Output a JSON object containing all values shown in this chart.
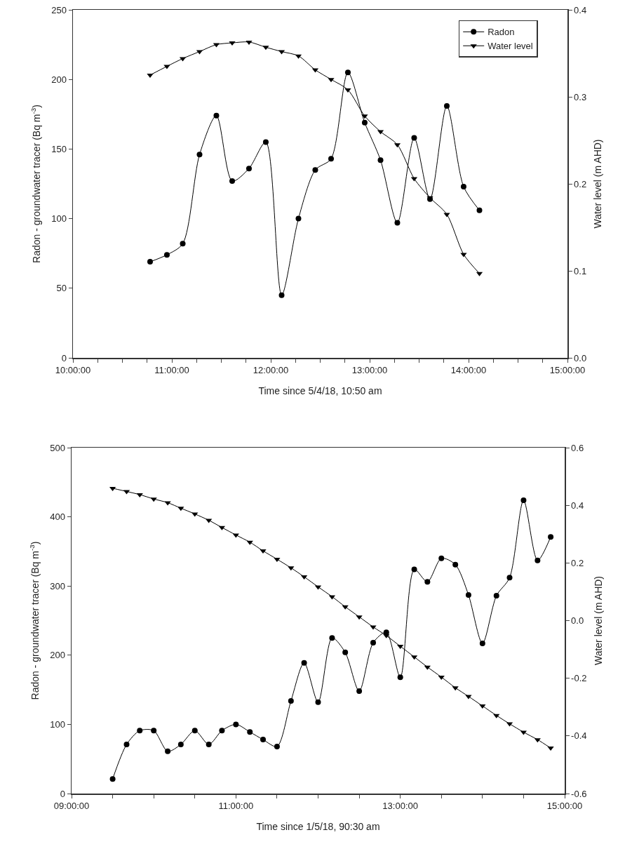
{
  "chart_data": [
    {
      "type": "line",
      "xlabel": "Time since 5/4/18, 10:50 am",
      "ylabel": "Radon - groundwater tracer (Bq m$^{-3}$)",
      "y2label": "Water level (m AHD)",
      "x": [
        10.78,
        10.95,
        11.11,
        11.28,
        11.45,
        11.61,
        11.78,
        11.95,
        12.11,
        12.28,
        12.45,
        12.61,
        12.78,
        12.95,
        13.11,
        13.28,
        13.45,
        13.61,
        13.78,
        13.95,
        14.11
      ],
      "series": [
        {
          "name": "Radon",
          "color": "#000000",
          "marker": "circle",
          "values": [
            69,
            74,
            82,
            146,
            174,
            127,
            136,
            155,
            45,
            100,
            135,
            143,
            205,
            169,
            142,
            97,
            158,
            114,
            181,
            123,
            106
          ]
        },
        {
          "name": "Water level",
          "color": "#000000",
          "marker": "triangle",
          "axis": "y2",
          "values": [
            0.325,
            0.335,
            0.344,
            0.352,
            0.36,
            0.362,
            0.363,
            0.357,
            0.352,
            0.347,
            0.331,
            0.32,
            0.308,
            0.278,
            0.26,
            0.245,
            0.206,
            0.184,
            0.165,
            0.119,
            0.097
          ]
        }
      ],
      "xlim": [
        10,
        15
      ],
      "xticks": [
        {
          "value": 10,
          "label": "10:00:00"
        },
        {
          "value": 10.25,
          "label": null
        },
        {
          "value": 10.5,
          "label": null
        },
        {
          "value": 10.75,
          "label": null
        },
        {
          "value": 11,
          "label": "11:00:00"
        },
        {
          "value": 11.25,
          "label": null
        },
        {
          "value": 11.5,
          "label": null
        },
        {
          "value": 11.75,
          "label": null
        },
        {
          "value": 12,
          "label": "12:00:00"
        },
        {
          "value": 12.25,
          "label": null
        },
        {
          "value": 12.5,
          "label": null
        },
        {
          "value": 12.75,
          "label": null
        },
        {
          "value": 13,
          "label": "13:00:00"
        },
        {
          "value": 13.25,
          "label": null
        },
        {
          "value": 13.5,
          "label": null
        },
        {
          "value": 13.75,
          "label": null
        },
        {
          "value": 14,
          "label": "14:00:00"
        },
        {
          "value": 14.25,
          "label": null
        },
        {
          "value": 14.5,
          "label": null
        },
        {
          "value": 14.75,
          "label": null
        },
        {
          "value": 15,
          "label": "15:00:00"
        }
      ],
      "ylim": [
        0,
        250
      ],
      "yticks": [
        0,
        50,
        100,
        150,
        200,
        250
      ],
      "y2lim": [
        0,
        0.4
      ],
      "y2ticks": [
        {
          "value": 0,
          "label": "0.0"
        },
        0.1,
        0.2,
        0.3,
        0.4
      ],
      "grid": false,
      "legend": "top right",
      "line_style": "solid"
    },
    {
      "type": "line",
      "xlabel": "Time since 1/5/18, 90:30 am",
      "ylabel": "Radon - groundwater tracer (Bq m$^{-3}$)",
      "y2label": "Water level (m AHD)",
      "x": [
        9.5,
        9.67,
        9.83,
        10,
        10.17,
        10.33,
        10.5,
        10.67,
        10.83,
        11,
        11.17,
        11.33,
        11.5,
        11.67,
        11.83,
        12,
        12.17,
        12.33,
        12.5,
        12.67,
        12.83,
        13,
        13.17,
        13.33,
        13.5,
        13.67,
        13.83,
        14,
        14.17,
        14.33,
        14.5,
        14.67,
        14.83
      ],
      "series": [
        {
          "color": "#000000",
          "marker": "circle",
          "values": [
            21,
            71,
            91,
            91,
            61,
            71,
            91,
            71,
            91,
            100,
            89,
            78,
            68,
            134,
            189,
            132,
            225,
            204,
            148,
            218,
            233,
            168,
            324,
            306,
            340,
            331,
            287,
            217,
            286,
            312,
            424,
            337,
            371
          ]
        },
        {
          "color": "#000000",
          "marker": "triangle",
          "axis": "y2",
          "values": [
            0.459,
            0.448,
            0.437,
            0.422,
            0.409,
            0.39,
            0.37,
            0.348,
            0.323,
            0.297,
            0.272,
            0.242,
            0.213,
            0.183,
            0.152,
            0.117,
            0.083,
            0.048,
            0.013,
            -0.022,
            -0.052,
            -0.089,
            -0.126,
            -0.161,
            -0.196,
            -0.233,
            -0.263,
            -0.296,
            -0.329,
            -0.358,
            -0.387,
            -0.413,
            -0.442
          ]
        }
      ],
      "xlim": [
        9,
        15
      ],
      "xticks": [
        {
          "value": 9,
          "label": "09:00:00"
        },
        {
          "value": 9.5,
          "label": null
        },
        {
          "value": 10,
          "label": null
        },
        {
          "value": 10.5,
          "label": null
        },
        {
          "value": 11,
          "label": "11:00:00"
        },
        {
          "value": 11.5,
          "label": null
        },
        {
          "value": 12,
          "label": null
        },
        {
          "value": 12.5,
          "label": null
        },
        {
          "value": 13,
          "label": "13:00:00"
        },
        {
          "value": 13.5,
          "label": null
        },
        {
          "value": 14,
          "label": null
        },
        {
          "value": 14.5,
          "label": null
        },
        {
          "value": 15,
          "label": "15:00:00"
        }
      ],
      "ylim": [
        0,
        500
      ],
      "yticks": [
        0,
        100,
        200,
        300,
        400,
        500
      ],
      "y2lim": [
        -0.6,
        0.6
      ],
      "y2ticks": [
        -0.6,
        -0.4,
        -0.2,
        {
          "value": 0,
          "label": "0.0"
        },
        0.2,
        0.4,
        0.6
      ],
      "grid": false,
      "legend": false,
      "line_style": "solid"
    }
  ]
}
